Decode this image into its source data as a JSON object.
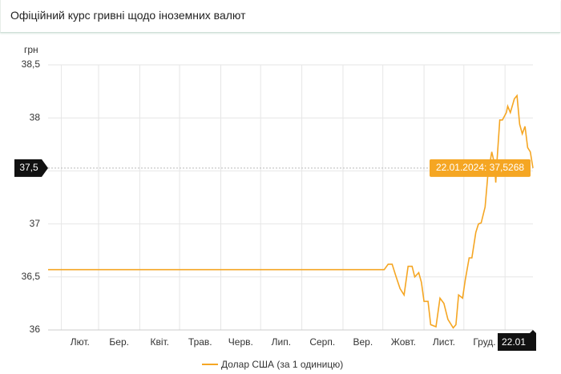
{
  "header": {
    "title": "Офіційний курс гривні щодо іноземних валют"
  },
  "chart_data": {
    "type": "line",
    "y_label": "грн",
    "x": [
      "2023-01-22",
      "2023-10-02",
      "2023-10-05",
      "2023-10-08",
      "2023-10-11",
      "2023-10-14",
      "2023-10-17",
      "2023-10-20",
      "2023-10-23",
      "2023-10-25",
      "2023-10-28",
      "2023-10-30",
      "2023-11-01",
      "2023-11-04",
      "2023-11-06",
      "2023-11-10",
      "2023-11-13",
      "2023-11-16",
      "2023-11-19",
      "2023-11-23",
      "2023-11-25",
      "2023-11-27",
      "2023-11-30",
      "2023-12-02",
      "2023-12-05",
      "2023-12-07",
      "2023-12-10",
      "2023-12-12",
      "2023-12-14",
      "2023-12-17",
      "2023-12-19",
      "2023-12-22",
      "2023-12-24",
      "2023-12-25",
      "2023-12-26",
      "2023-12-28",
      "2023-12-30",
      "2024-01-02",
      "2024-01-03",
      "2024-01-05",
      "2024-01-08",
      "2024-01-10",
      "2024-01-12",
      "2024-01-14",
      "2024-01-16",
      "2024-01-18",
      "2024-01-20",
      "2024-01-22"
    ],
    "series": [
      {
        "name": "Долар США (за 1 одиницю)",
        "color": "#f5a623",
        "values": [
          36.5686,
          36.5686,
          36.62,
          36.62,
          36.5,
          36.39,
          36.33,
          36.6,
          36.6,
          36.5,
          36.54,
          36.45,
          36.27,
          36.27,
          36.05,
          36.03,
          36.3,
          36.25,
          36.1,
          36.02,
          36.05,
          36.33,
          36.3,
          36.47,
          36.68,
          36.68,
          36.92,
          37.0,
          37.01,
          37.16,
          37.45,
          37.68,
          37.57,
          37.39,
          37.6,
          37.98,
          37.98,
          38.05,
          38.11,
          38.05,
          38.18,
          38.21,
          37.94,
          37.85,
          37.92,
          37.72,
          37.68,
          37.5268
        ]
      }
    ],
    "xlim": [
      "2023-01-22",
      "2024-01-22"
    ],
    "xticks": [
      {
        "value": "2023-02-01",
        "label": "Лют."
      },
      {
        "value": "2023-03-01",
        "label": "Бер."
      },
      {
        "value": "2023-04-01",
        "label": "Квіт."
      },
      {
        "value": "2023-05-01",
        "label": "Трав."
      },
      {
        "value": "2023-06-01",
        "label": "Черв."
      },
      {
        "value": "2023-07-01",
        "label": "Лип."
      },
      {
        "value": "2023-08-01",
        "label": "Серп."
      },
      {
        "value": "2023-09-01",
        "label": "Вер."
      },
      {
        "value": "2023-10-01",
        "label": "Жовт."
      },
      {
        "value": "2023-11-01",
        "label": "Лист."
      },
      {
        "value": "2023-12-01",
        "label": "Груд."
      },
      {
        "value": "2024-01-01",
        "label": null
      }
    ],
    "ylim": [
      36,
      38.5
    ],
    "yticks": [
      36,
      {
        "value": 36.5,
        "label": "36,5"
      },
      37,
      {
        "value": 37.5,
        "label": "37,5"
      },
      38,
      {
        "value": 38.5,
        "label": "38,5"
      }
    ],
    "grid": true,
    "crosshair": {
      "x_label": "22.01",
      "y_label": "37,5",
      "tooltip": "22.01.2024: 37,5268"
    }
  }
}
